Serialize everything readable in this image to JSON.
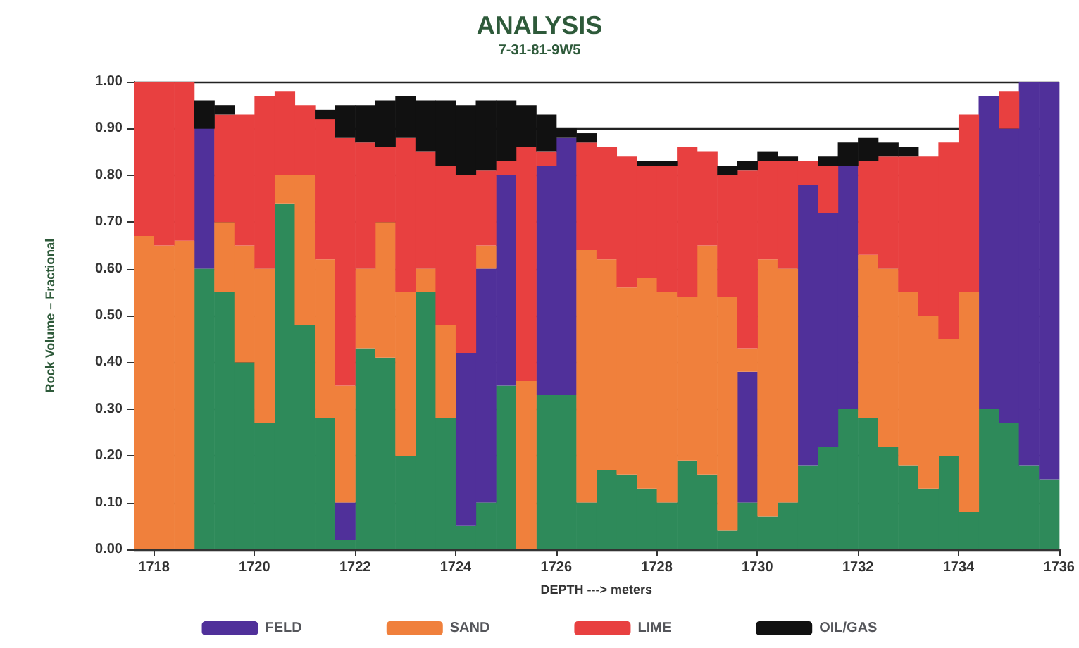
{
  "chart_data": {
    "type": "bar",
    "title": "ANALYSIS",
    "subtitle": "7-31-81-9W5",
    "xlabel": "DEPTH ---> meters",
    "ylabel": "Rock Volume – Fractional",
    "x": [
      1717.8,
      1718.2,
      1718.6,
      1719.0,
      1719.4,
      1719.8,
      1720.2,
      1720.6,
      1721.0,
      1721.4,
      1721.8,
      1722.2,
      1722.6,
      1723.0,
      1723.4,
      1723.8,
      1724.2,
      1724.6,
      1725.0,
      1725.4,
      1725.8,
      1726.2,
      1726.6,
      1727.0,
      1727.4,
      1727.8,
      1728.2,
      1728.6,
      1729.0,
      1729.4,
      1729.8,
      1730.2,
      1730.6,
      1731.0,
      1731.4,
      1731.8,
      1732.2,
      1732.6,
      1733.0,
      1733.4,
      1733.8,
      1734.2,
      1734.6,
      1735.0,
      1735.4,
      1735.8
    ],
    "stacked": true,
    "series": [
      {
        "color": "#2e8a5a",
        "values": [
          0,
          0,
          0,
          0.6,
          0.55,
          0.4,
          0.27,
          0.74,
          0.48,
          0.28,
          0.02,
          0.43,
          0.41,
          0.2,
          0.55,
          0.28,
          0.05,
          0.1,
          0.35,
          0,
          0.33,
          0.33,
          0.1,
          0.17,
          0.16,
          0.13,
          0.1,
          0.19,
          0.16,
          0.04,
          0.1,
          0.07,
          0.1,
          0.18,
          0.22,
          0.3,
          0.28,
          0.22,
          0.18,
          0.13,
          0.2,
          0.08,
          0.3,
          0.27,
          0.18,
          0.15
        ]
      },
      {
        "name": "FELD",
        "color": "#50309a",
        "values": [
          0,
          0,
          0,
          0.3,
          0,
          0,
          0,
          0,
          0,
          0,
          0.08,
          0,
          0,
          0,
          0,
          0,
          0.37,
          0.5,
          0.45,
          0,
          0.49,
          0.55,
          0,
          0,
          0,
          0,
          0,
          0,
          0,
          0,
          0.28,
          0,
          0,
          0.6,
          0.5,
          0.52,
          0,
          0,
          0,
          0,
          0,
          0,
          0.67,
          0.63,
          0.82,
          0.85
        ]
      },
      {
        "name": "SAND",
        "color": "#f0803c",
        "values": [
          0.67,
          0.65,
          0.66,
          0,
          0.15,
          0.25,
          0.33,
          0.06,
          0.32,
          0.34,
          0.25,
          0.17,
          0.29,
          0.35,
          0.05,
          0.2,
          0,
          0.05,
          0,
          0.36,
          0,
          0,
          0.54,
          0.45,
          0.4,
          0.45,
          0.45,
          0.35,
          0.49,
          0.5,
          0.05,
          0.55,
          0.5,
          0,
          0,
          0,
          0.35,
          0.38,
          0.37,
          0.37,
          0.25,
          0.47,
          0,
          0,
          0,
          0
        ]
      },
      {
        "name": "LIME",
        "color": "#e84040",
        "values": [
          0.33,
          0.35,
          0.34,
          0,
          0.23,
          0.28,
          0.37,
          0.18,
          0.15,
          0.3,
          0.53,
          0.27,
          0.16,
          0.33,
          0.25,
          0.34,
          0.38,
          0.16,
          0.03,
          0.5,
          0.03,
          0,
          0.23,
          0.24,
          0.28,
          0.24,
          0.27,
          0.32,
          0.2,
          0.26,
          0.38,
          0.21,
          0.23,
          0.05,
          0.1,
          0,
          0.2,
          0.24,
          0.29,
          0.34,
          0.42,
          0.38,
          0,
          0.08,
          0,
          0
        ]
      },
      {
        "name": "OIL/GAS",
        "color": "#111111",
        "values": [
          0,
          0,
          0,
          0.06,
          0.02,
          0,
          0,
          0,
          0,
          0.02,
          0.07,
          0.08,
          0.1,
          0.09,
          0.11,
          0.14,
          0.15,
          0.15,
          0.13,
          0.09,
          0.08,
          0.02,
          0.02,
          0,
          0,
          0.01,
          0.01,
          0,
          0,
          0.02,
          0.02,
          0.02,
          0.01,
          0,
          0.02,
          0.05,
          0.05,
          0.03,
          0.02,
          0,
          0,
          0,
          0,
          0,
          0,
          0
        ]
      }
    ],
    "xlim": [
      1717.6,
      1736
    ],
    "xticks": [
      1718,
      1720,
      1722,
      1724,
      1726,
      1728,
      1730,
      1732,
      1734,
      1736
    ],
    "ylim": [
      0,
      1
    ],
    "yticks": [
      {
        "value": 0,
        "label": "0.00"
      },
      {
        "value": 0.1,
        "label": "0.10"
      },
      {
        "value": 0.2,
        "label": "0.20"
      },
      {
        "value": 0.3,
        "label": "0.30"
      },
      {
        "value": 0.4,
        "label": "0.40"
      },
      {
        "value": 0.5,
        "label": "0.50"
      },
      {
        "value": 0.6,
        "label": "0.60"
      },
      {
        "value": 0.7,
        "label": "0.70"
      },
      {
        "value": 0.8,
        "label": "0.80"
      },
      {
        "value": 0.9,
        "label": "0.90"
      },
      {
        "value": 1,
        "label": "1.00"
      }
    ],
    "grid": "y",
    "legend": "bottom"
  }
}
